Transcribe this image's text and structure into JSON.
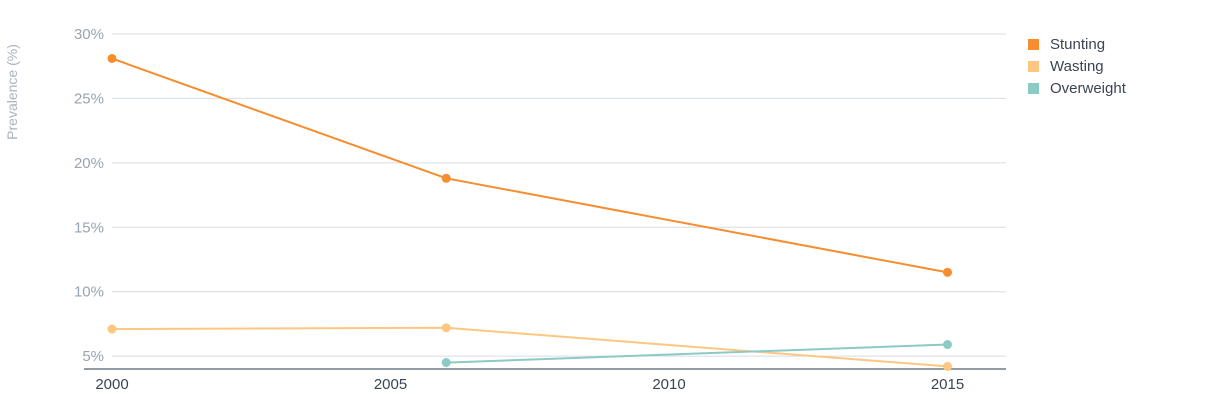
{
  "chart_data": {
    "type": "line",
    "ylabel": "Prevalence (%)",
    "xlabel": "",
    "xlim": [
      2000,
      2016.05
    ],
    "ylim": [
      4,
      30
    ],
    "x_ticks": [
      2000,
      2005,
      2010,
      2015
    ],
    "y_ticks": [
      5,
      10,
      15,
      20,
      25,
      30
    ],
    "y_tick_labels": [
      "5%",
      "10%",
      "15%",
      "20%",
      "25%",
      "30%"
    ],
    "grid": true,
    "legend_position": "top-right",
    "series": [
      {
        "name": "Stunting",
        "color": "#f68d2e",
        "points": [
          [
            2000,
            28.1
          ],
          [
            2006,
            18.8
          ],
          [
            2015,
            11.5
          ]
        ]
      },
      {
        "name": "Wasting",
        "color": "#fdc782",
        "points": [
          [
            2000,
            7.1
          ],
          [
            2006,
            7.2
          ],
          [
            2015,
            4.2
          ]
        ]
      },
      {
        "name": "Overweight",
        "color": "#8ccac6",
        "points": [
          [
            2006,
            4.5
          ],
          [
            2015,
            5.9
          ]
        ]
      }
    ]
  }
}
